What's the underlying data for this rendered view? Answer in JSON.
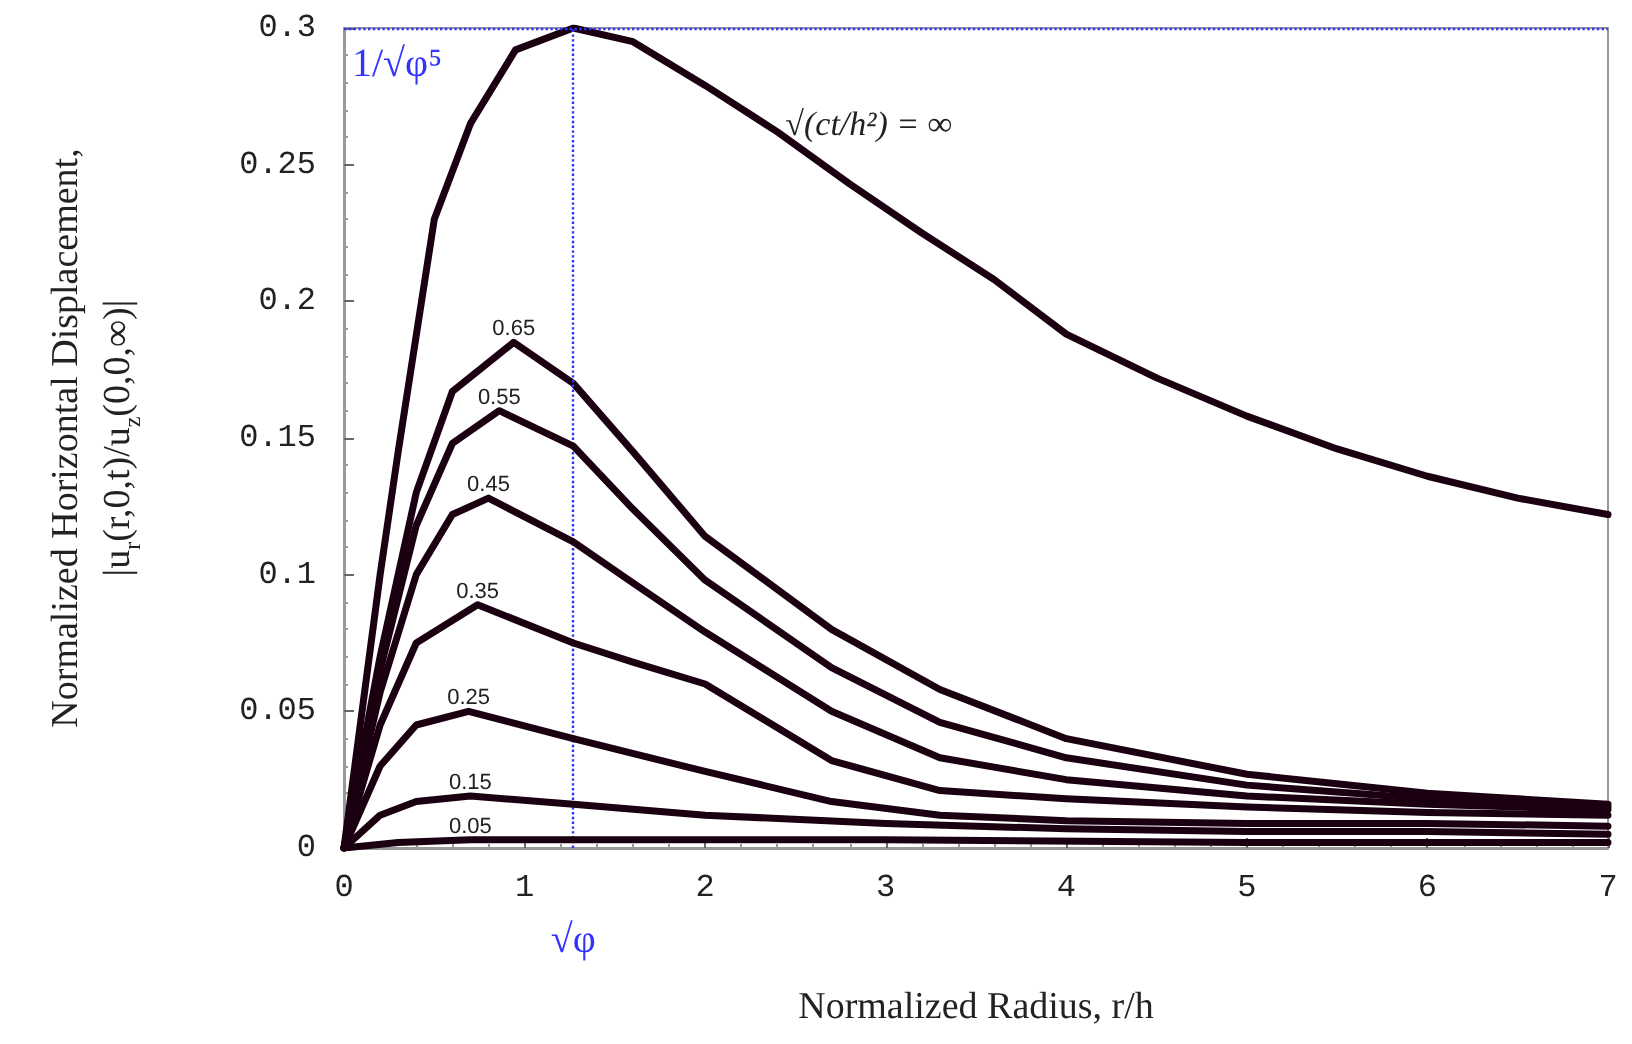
{
  "chart_data": {
    "type": "line",
    "xlabel": "Normalized Radius, r/h",
    "ylabel": "Normalized Horizontal Displacement,\n|u$_{r}$(r,0,t)/u$_{z}$(0,0,∞)|",
    "xlim": [
      0,
      7
    ],
    "xticks": [
      0,
      1,
      2,
      3,
      4,
      5,
      6,
      7
    ],
    "ylim": [
      0,
      0.3
    ],
    "yticks": [
      0,
      0.05,
      0.1,
      0.15,
      0.2,
      0.25,
      0.3
    ],
    "grid": false,
    "legend": false,
    "marker": "none",
    "line_style": "solid",
    "ref_lines": [
      {
        "axis": "y",
        "value": 0.3,
        "label": "1/√φ⁵",
        "color": "#3333ff",
        "line_style": "dotted"
      },
      {
        "axis": "x",
        "value": 1.272,
        "label": "√φ",
        "color": "#3333ff",
        "line_style": "dotted"
      }
    ],
    "series": [
      {
        "name": "√(ct/h²) = ∞",
        "color": "#1a0010",
        "x": [
          0,
          0.1,
          0.2,
          0.3,
          0.5,
          0.7,
          0.95,
          1.27,
          1.6,
          2,
          2.4,
          2.8,
          3.2,
          3.6,
          4,
          4.5,
          5,
          5.5,
          6,
          6.5,
          7
        ],
        "values": [
          0,
          0.05,
          0.1,
          0.145,
          0.23,
          0.265,
          0.292,
          0.3,
          0.295,
          0.279,
          0.262,
          0.243,
          0.225,
          0.208,
          0.188,
          0.172,
          0.158,
          0.146,
          0.136,
          0.128,
          0.122
        ]
      },
      {
        "name": "0.65",
        "color": "#1a0010",
        "x": [
          0,
          0.2,
          0.4,
          0.6,
          0.94,
          1.27,
          1.6,
          2,
          2.7,
          3.3,
          4,
          5,
          6,
          7
        ],
        "values": [
          0,
          0.07,
          0.13,
          0.167,
          0.185,
          0.17,
          0.145,
          0.114,
          0.08,
          0.058,
          0.04,
          0.027,
          0.02,
          0.016
        ]
      },
      {
        "name": "0.55",
        "color": "#1a0010",
        "x": [
          0,
          0.2,
          0.4,
          0.6,
          0.86,
          1.27,
          1.6,
          2,
          2.7,
          3.3,
          4,
          5,
          6,
          7
        ],
        "values": [
          0,
          0.065,
          0.118,
          0.148,
          0.16,
          0.147,
          0.124,
          0.098,
          0.066,
          0.046,
          0.033,
          0.023,
          0.018,
          0.015
        ]
      },
      {
        "name": "0.45",
        "color": "#1a0010",
        "x": [
          0,
          0.2,
          0.4,
          0.6,
          0.8,
          1.27,
          1.6,
          2,
          2.7,
          3.3,
          4,
          5,
          6,
          7
        ],
        "values": [
          0,
          0.057,
          0.1,
          0.122,
          0.128,
          0.112,
          0.097,
          0.079,
          0.05,
          0.033,
          0.025,
          0.019,
          0.016,
          0.014
        ]
      },
      {
        "name": "0.35",
        "color": "#1a0010",
        "x": [
          0,
          0.2,
          0.4,
          0.74,
          1.27,
          1.6,
          2,
          2.7,
          3.3,
          4,
          5,
          6,
          7
        ],
        "values": [
          0,
          0.045,
          0.075,
          0.089,
          0.075,
          0.068,
          0.06,
          0.032,
          0.021,
          0.018,
          0.015,
          0.013,
          0.012
        ]
      },
      {
        "name": "0.25",
        "color": "#1a0010",
        "x": [
          0,
          0.2,
          0.4,
          0.69,
          1.27,
          2,
          2.7,
          3.3,
          4,
          5,
          6,
          7
        ],
        "values": [
          0,
          0.03,
          0.045,
          0.05,
          0.04,
          0.028,
          0.017,
          0.012,
          0.01,
          0.009,
          0.009,
          0.008
        ]
      },
      {
        "name": "0.15",
        "color": "#1a0010",
        "x": [
          0,
          0.2,
          0.4,
          0.7,
          1.27,
          2,
          3,
          4,
          5,
          6,
          7
        ],
        "values": [
          0,
          0.012,
          0.017,
          0.019,
          0.016,
          0.012,
          0.009,
          0.007,
          0.006,
          0.006,
          0.005
        ]
      },
      {
        "name": "0.05",
        "color": "#1a0010",
        "x": [
          0,
          0.3,
          0.7,
          1.5,
          3,
          5,
          7
        ],
        "values": [
          0,
          0.002,
          0.003,
          0.003,
          0.003,
          0.002,
          0.002
        ]
      }
    ]
  }
}
